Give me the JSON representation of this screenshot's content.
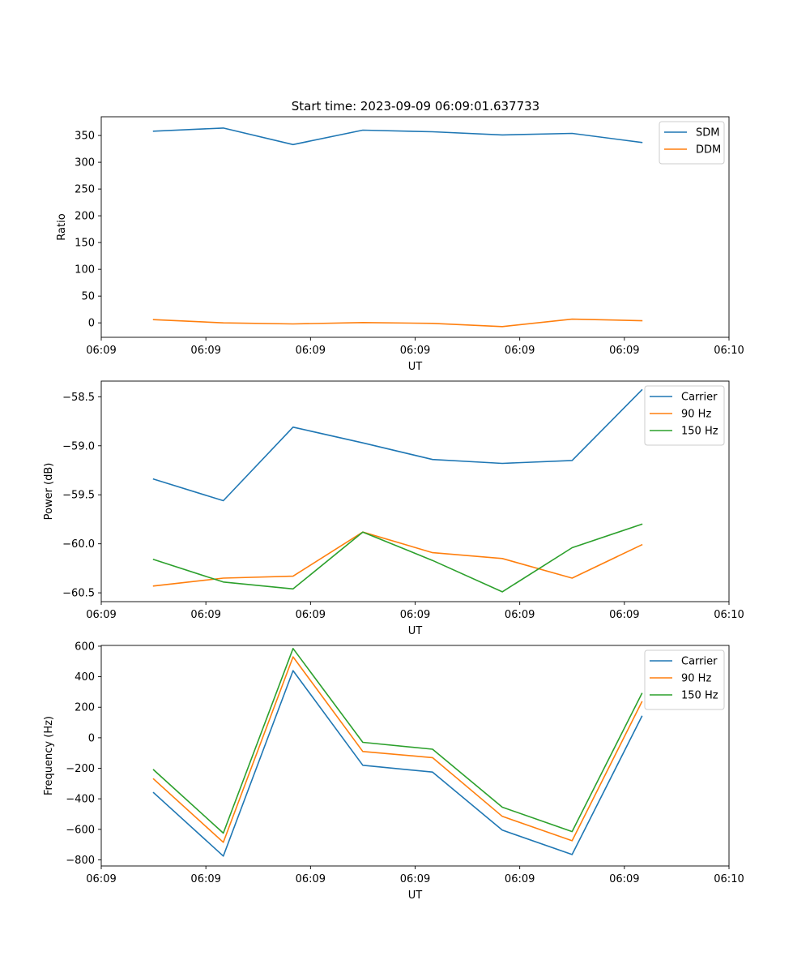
{
  "figure_title": "Start time: 2023-09-09 06:09:01.637733",
  "chart_data": [
    {
      "type": "line",
      "title": "Start time: 2023-09-09 06:09:01.637733",
      "xlabel": "UT",
      "ylabel": "Ratio",
      "x": [
        1,
        2,
        3,
        4,
        5,
        6,
        7,
        8
      ],
      "xlim": [
        0.25,
        9.25
      ],
      "xticks": [
        0.25,
        1.75,
        3.25,
        4.75,
        6.25,
        7.75,
        9.25
      ],
      "xticklabels": [
        "06:09",
        "06:09",
        "06:09",
        "06:09",
        "06:09",
        "06:09",
        "06:10"
      ],
      "ylim": [
        -27,
        385
      ],
      "yticks": [
        0,
        50,
        100,
        150,
        200,
        250,
        300,
        350
      ],
      "yticklabels": [
        "0",
        "50",
        "100",
        "150",
        "200",
        "250",
        "300",
        "350"
      ],
      "legend": "top-right",
      "series": [
        {
          "name": "SDM",
          "color": "#1f77b4",
          "values": [
            358,
            364,
            333,
            360,
            357,
            351,
            354,
            337
          ]
        },
        {
          "name": "DDM",
          "color": "#ff7f0e",
          "values": [
            6,
            0,
            -2,
            0.5,
            -1,
            -7,
            7,
            4
          ]
        }
      ]
    },
    {
      "type": "line",
      "title": "",
      "xlabel": "UT",
      "ylabel": "Power (dB)",
      "x": [
        1,
        2,
        3,
        4,
        5,
        6,
        7,
        8
      ],
      "xlim": [
        0.25,
        9.25
      ],
      "xticks": [
        0.25,
        1.75,
        3.25,
        4.75,
        6.25,
        7.75,
        9.25
      ],
      "xticklabels": [
        "06:09",
        "06:09",
        "06:09",
        "06:09",
        "06:09",
        "06:09",
        "06:10"
      ],
      "ylim": [
        -60.59,
        -58.34
      ],
      "yticks": [
        -60.5,
        -60.0,
        -59.5,
        -59.0,
        -58.5
      ],
      "yticklabels": [
        "−60.5",
        "−60.0",
        "−59.5",
        "−59.0",
        "−58.5"
      ],
      "legend": "top-right",
      "series": [
        {
          "name": "Carrier",
          "color": "#1f77b4",
          "values": [
            -59.34,
            -59.56,
            -58.81,
            -58.97,
            -59.14,
            -59.18,
            -59.15,
            -58.43
          ]
        },
        {
          "name": "90 Hz",
          "color": "#ff7f0e",
          "values": [
            -60.43,
            -60.35,
            -60.33,
            -59.88,
            -60.09,
            -60.15,
            -60.35,
            -60.01
          ]
        },
        {
          "name": "150 Hz",
          "color": "#2ca02c",
          "values": [
            -60.16,
            -60.39,
            -60.46,
            -59.88,
            -60.17,
            -60.49,
            -60.04,
            -59.8
          ]
        }
      ]
    },
    {
      "type": "line",
      "title": "",
      "xlabel": "UT",
      "ylabel": "Frequency (Hz)",
      "x": [
        1,
        2,
        3,
        4,
        5,
        6,
        7,
        8
      ],
      "xlim": [
        0.25,
        9.25
      ],
      "xticks": [
        0.25,
        1.75,
        3.25,
        4.75,
        6.25,
        7.75,
        9.25
      ],
      "xticklabels": [
        "06:09",
        "06:09",
        "06:09",
        "06:09",
        "06:09",
        "06:09",
        "06:10"
      ],
      "ylim": [
        -840,
        605
      ],
      "yticks": [
        -800,
        -600,
        -400,
        -200,
        0,
        200,
        400,
        600
      ],
      "yticklabels": [
        "−800",
        "−600",
        "−400",
        "−200",
        "0",
        "200",
        "400",
        "600"
      ],
      "legend": "top-right",
      "series": [
        {
          "name": "Carrier",
          "color": "#1f77b4",
          "values": [
            -360,
            -775,
            440,
            -180,
            -225,
            -605,
            -765,
            140
          ]
        },
        {
          "name": "90 Hz",
          "color": "#ff7f0e",
          "values": [
            -270,
            -685,
            530,
            -90,
            -130,
            -515,
            -675,
            235
          ]
        },
        {
          "name": "150 Hz",
          "color": "#2ca02c",
          "values": [
            -210,
            -625,
            585,
            -30,
            -75,
            -455,
            -615,
            290
          ]
        }
      ]
    }
  ]
}
